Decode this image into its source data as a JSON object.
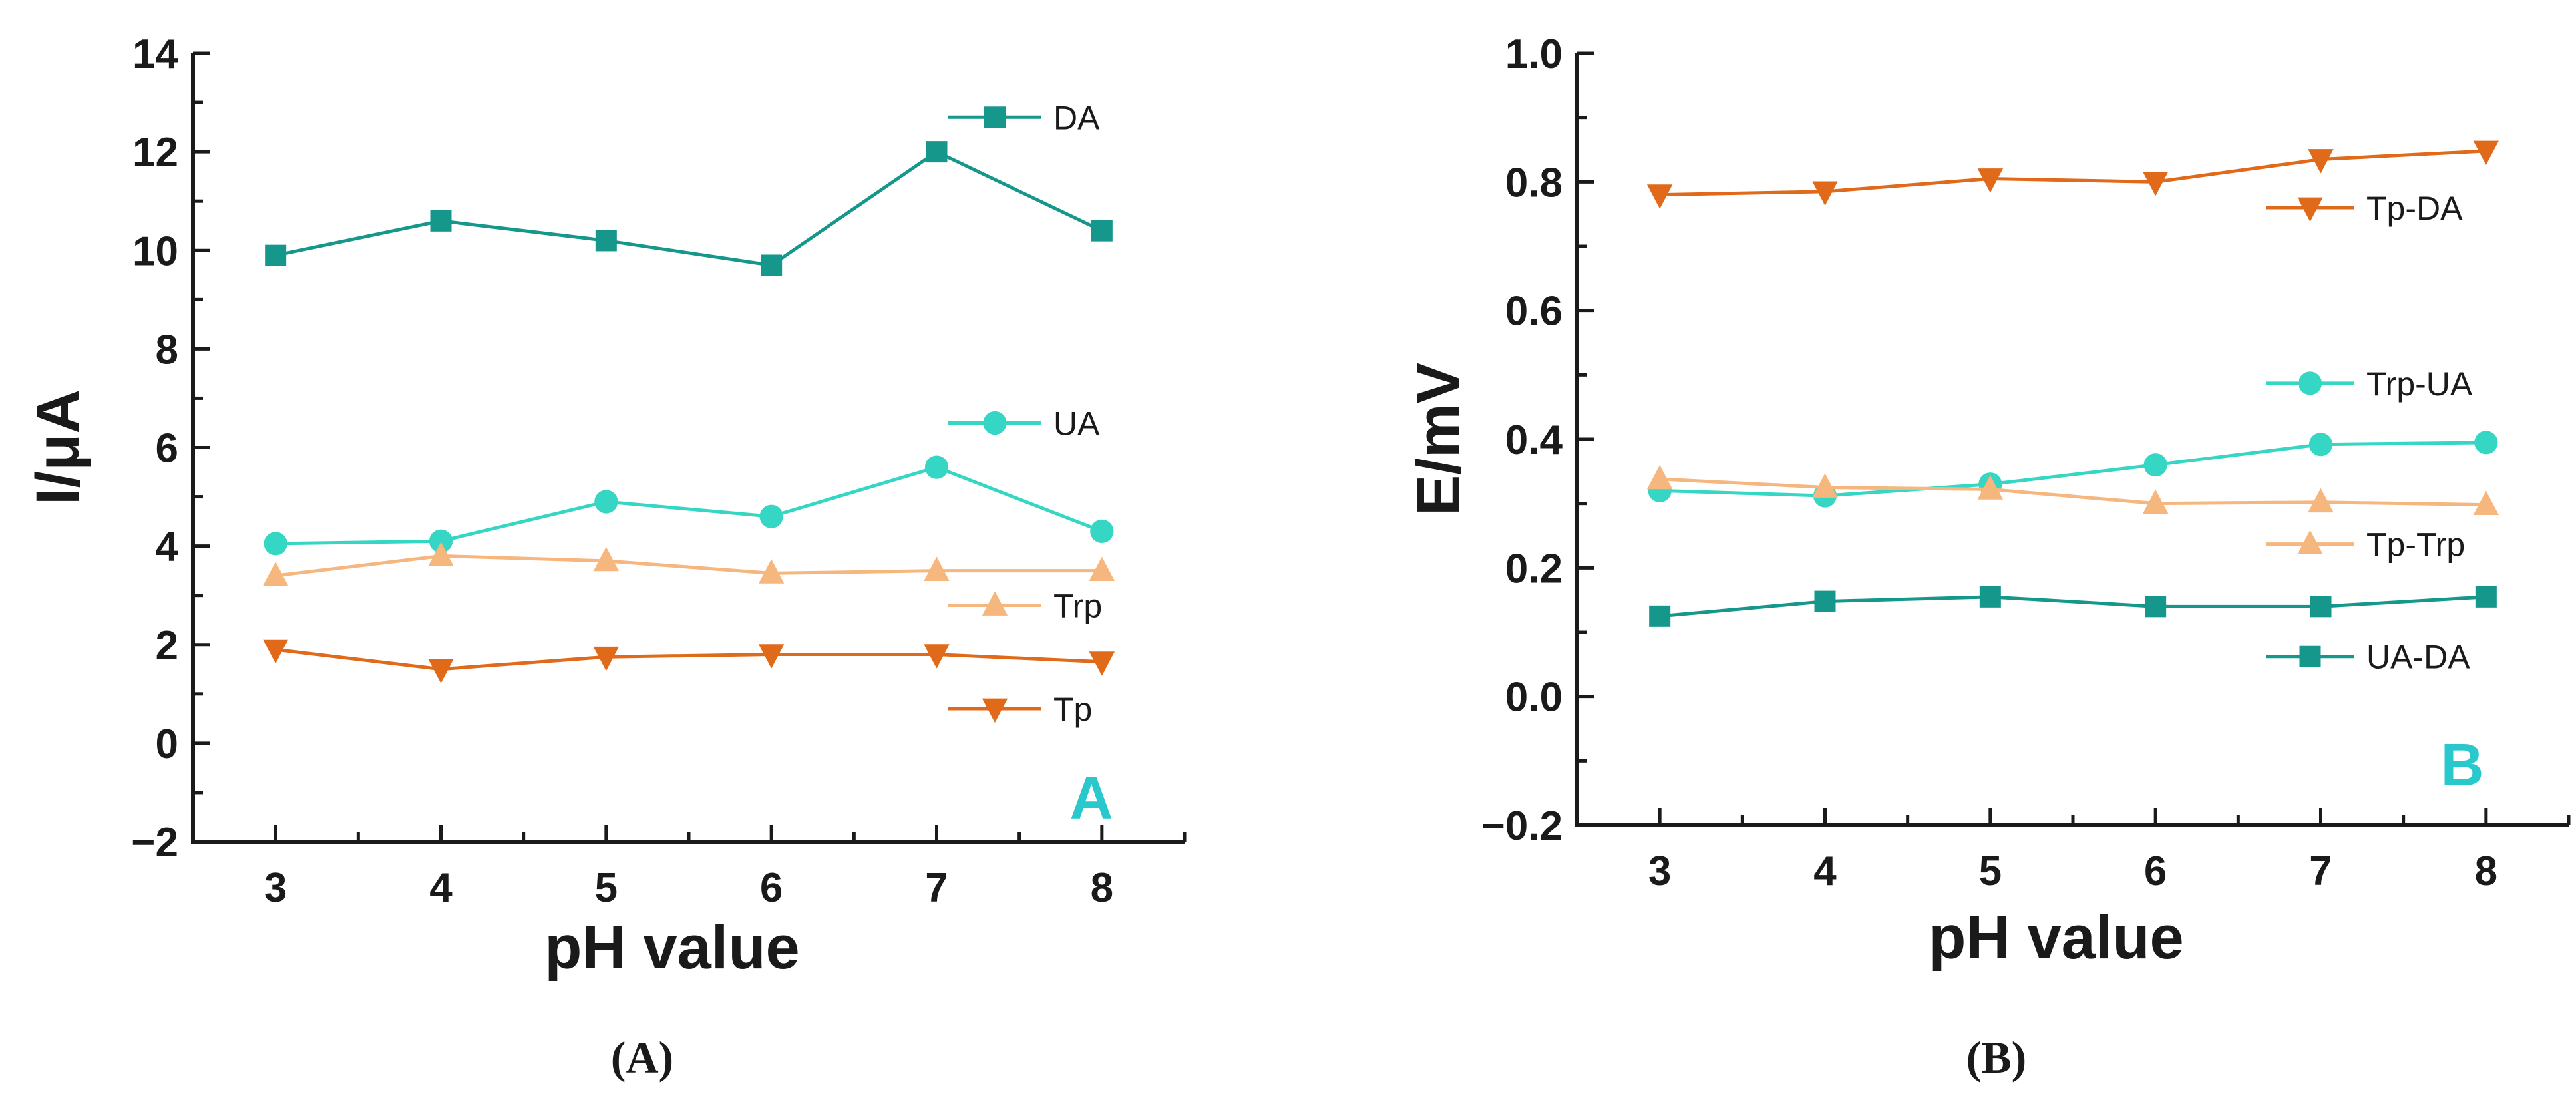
{
  "chart_data": [
    {
      "type": "line",
      "id": "A",
      "title": "",
      "xlabel": "pH value",
      "ylabel": "I/μA",
      "x": [
        3,
        4,
        5,
        6,
        7,
        8
      ],
      "xlim": [
        2.5,
        8.5
      ],
      "ylim": [
        -2,
        14
      ],
      "yticks": [
        -2,
        0,
        2,
        4,
        6,
        8,
        10,
        12,
        14
      ],
      "ytick_labels": [
        "−2",
        "0",
        "2",
        "4",
        "6",
        "8",
        "10",
        "12",
        "14"
      ],
      "xticks": [
        3,
        4,
        5,
        6,
        7,
        8
      ],
      "panel_label": "A",
      "caption": "(A)",
      "series": [
        {
          "name": "DA",
          "marker": "square",
          "color": "#16978C",
          "values": [
            9.9,
            10.6,
            10.2,
            9.7,
            12.0,
            10.4
          ],
          "legend_value": 12.7
        },
        {
          "name": "UA",
          "marker": "circle",
          "color": "#36D6C4",
          "values": [
            4.05,
            4.1,
            4.9,
            4.6,
            5.6,
            4.3
          ],
          "legend_value": 6.5
        },
        {
          "name": "Trp",
          "marker": "triangle-up",
          "color": "#F5B77E",
          "values": [
            3.4,
            3.8,
            3.7,
            3.45,
            3.5,
            3.5
          ],
          "legend_value": 2.8
        },
        {
          "name": "Tp",
          "marker": "triangle-down",
          "color": "#E06A1A",
          "values": [
            1.9,
            1.5,
            1.75,
            1.8,
            1.8,
            1.65
          ],
          "legend_value": 0.7
        }
      ]
    },
    {
      "type": "line",
      "id": "B",
      "title": "",
      "xlabel": "pH value",
      "ylabel": "E/mV",
      "x": [
        3,
        4,
        5,
        6,
        7,
        8
      ],
      "xlim": [
        2.5,
        8.5
      ],
      "ylim": [
        -0.2,
        1.0
      ],
      "yticks": [
        -0.2,
        0,
        0.2,
        0.4,
        0.6,
        0.8,
        1.0
      ],
      "ytick_labels": [
        "−0.2",
        "0.0",
        "0.2",
        "0.4",
        "0.6",
        "0.8",
        "1.0"
      ],
      "xticks": [
        3,
        4,
        5,
        6,
        7,
        8
      ],
      "panel_label": "B",
      "caption": "(B)",
      "series": [
        {
          "name": "Tp-DA",
          "marker": "triangle-down",
          "color": "#E06A1A",
          "values": [
            0.78,
            0.785,
            0.805,
            0.8,
            0.835,
            0.848
          ],
          "legend_value": 0.76
        },
        {
          "name": "Trp-UA",
          "marker": "circle",
          "color": "#36D6C4",
          "values": [
            0.32,
            0.312,
            0.33,
            0.36,
            0.392,
            0.395
          ],
          "legend_value": 0.487
        },
        {
          "name": "Tp-Trp",
          "marker": "triangle-up",
          "color": "#F5B77E",
          "values": [
            0.338,
            0.325,
            0.322,
            0.3,
            0.302,
            0.298
          ],
          "legend_value": 0.237
        },
        {
          "name": "UA-DA",
          "marker": "square",
          "color": "#16978C",
          "values": [
            0.125,
            0.148,
            0.155,
            0.14,
            0.14,
            0.155
          ],
          "legend_value": 0.062
        }
      ]
    }
  ]
}
